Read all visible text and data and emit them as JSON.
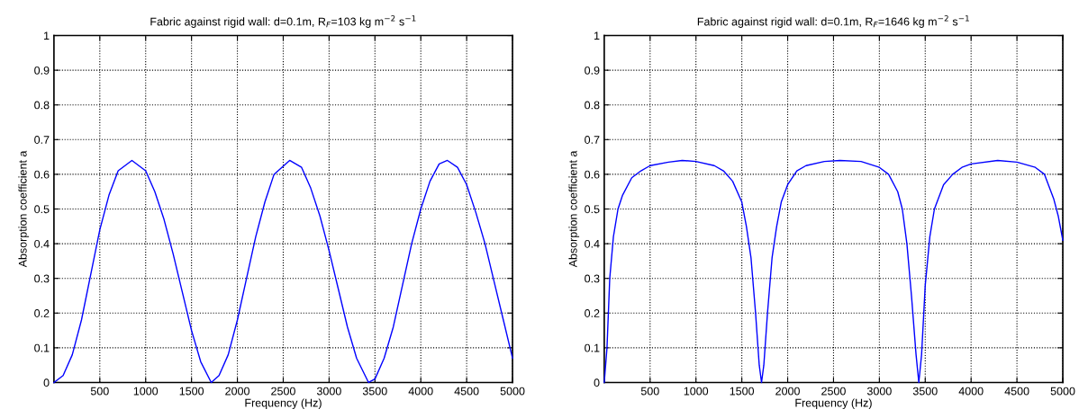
{
  "chart_data": [
    {
      "type": "line",
      "title": "Fabric against rigid wall: d=0.1m, R$_{F}$=103 kg m$^{−2}$ s$^{−1}$",
      "xlabel": "Frequency (Hz)",
      "ylabel": "Absorption coefficient a",
      "xlim": [
        0,
        5000
      ],
      "xticks": [
        500,
        1000,
        1500,
        2000,
        2500,
        3000,
        3500,
        4000,
        4500,
        5000
      ],
      "ylim": [
        0,
        1
      ],
      "yticks": [
        0,
        0.1,
        0.2,
        0.3,
        0.4,
        0.5,
        0.6,
        0.7,
        0.8,
        0.9,
        1
      ],
      "grid": true,
      "series": [
        {
          "color": "#0000ff",
          "x": [
            0,
            100,
            200,
            300,
            400,
            500,
            600,
            700,
            850,
            1000,
            1100,
            1200,
            1300,
            1400,
            1500,
            1600,
            1715,
            1800,
            1900,
            2000,
            2100,
            2200,
            2300,
            2400,
            2570,
            2700,
            2800,
            2900,
            3000,
            3100,
            3200,
            3300,
            3430,
            3500,
            3600,
            3700,
            3800,
            3900,
            4000,
            4100,
            4200,
            4290,
            4400,
            4500,
            4600,
            4700,
            4800,
            4900,
            5000
          ],
          "values": [
            0,
            0.02,
            0.08,
            0.18,
            0.31,
            0.44,
            0.54,
            0.61,
            0.64,
            0.61,
            0.55,
            0.47,
            0.37,
            0.26,
            0.15,
            0.06,
            0,
            0.02,
            0.08,
            0.18,
            0.3,
            0.42,
            0.52,
            0.6,
            0.64,
            0.62,
            0.56,
            0.48,
            0.38,
            0.27,
            0.16,
            0.07,
            0,
            0.01,
            0.07,
            0.16,
            0.28,
            0.4,
            0.5,
            0.58,
            0.63,
            0.64,
            0.62,
            0.57,
            0.49,
            0.4,
            0.29,
            0.18,
            0.07
          ]
        }
      ]
    },
    {
      "type": "line",
      "title": "Fabric against rigid wall: d=0.1m, R$_{F}$=1646 kg m$^{−2}$ s$^{−1}$",
      "xlabel": "Frequency (Hz)",
      "ylabel": "Absorption coefficient a",
      "xlim": [
        0,
        5000
      ],
      "xticks": [
        500,
        1000,
        1500,
        2000,
        2500,
        3000,
        3500,
        4000,
        4500,
        5000
      ],
      "ylim": [
        0,
        1
      ],
      "yticks": [
        0,
        0.1,
        0.2,
        0.3,
        0.4,
        0.5,
        0.6,
        0.7,
        0.8,
        0.9,
        1
      ],
      "grid": true,
      "series": [
        {
          "color": "#0000ff",
          "x": [
            0,
            30,
            60,
            100,
            150,
            200,
            300,
            400,
            500,
            700,
            850,
            1000,
            1200,
            1300,
            1400,
            1500,
            1550,
            1600,
            1650,
            1690,
            1715,
            1740,
            1780,
            1830,
            1880,
            1930,
            2000,
            2100,
            2200,
            2400,
            2570,
            2800,
            3000,
            3100,
            3200,
            3250,
            3300,
            3350,
            3400,
            3430,
            3460,
            3500,
            3550,
            3600,
            3700,
            3800,
            3900,
            4000,
            4290,
            4500,
            4700,
            4800,
            4900,
            4950,
            5000
          ],
          "values": [
            0,
            0.1,
            0.3,
            0.42,
            0.5,
            0.54,
            0.59,
            0.61,
            0.625,
            0.635,
            0.64,
            0.637,
            0.625,
            0.61,
            0.58,
            0.52,
            0.45,
            0.36,
            0.2,
            0.05,
            0,
            0.05,
            0.2,
            0.36,
            0.45,
            0.52,
            0.57,
            0.61,
            0.625,
            0.637,
            0.64,
            0.637,
            0.62,
            0.6,
            0.55,
            0.5,
            0.4,
            0.25,
            0.08,
            0,
            0.08,
            0.28,
            0.42,
            0.5,
            0.57,
            0.6,
            0.62,
            0.63,
            0.64,
            0.635,
            0.62,
            0.6,
            0.53,
            0.48,
            0.41
          ]
        }
      ]
    }
  ]
}
